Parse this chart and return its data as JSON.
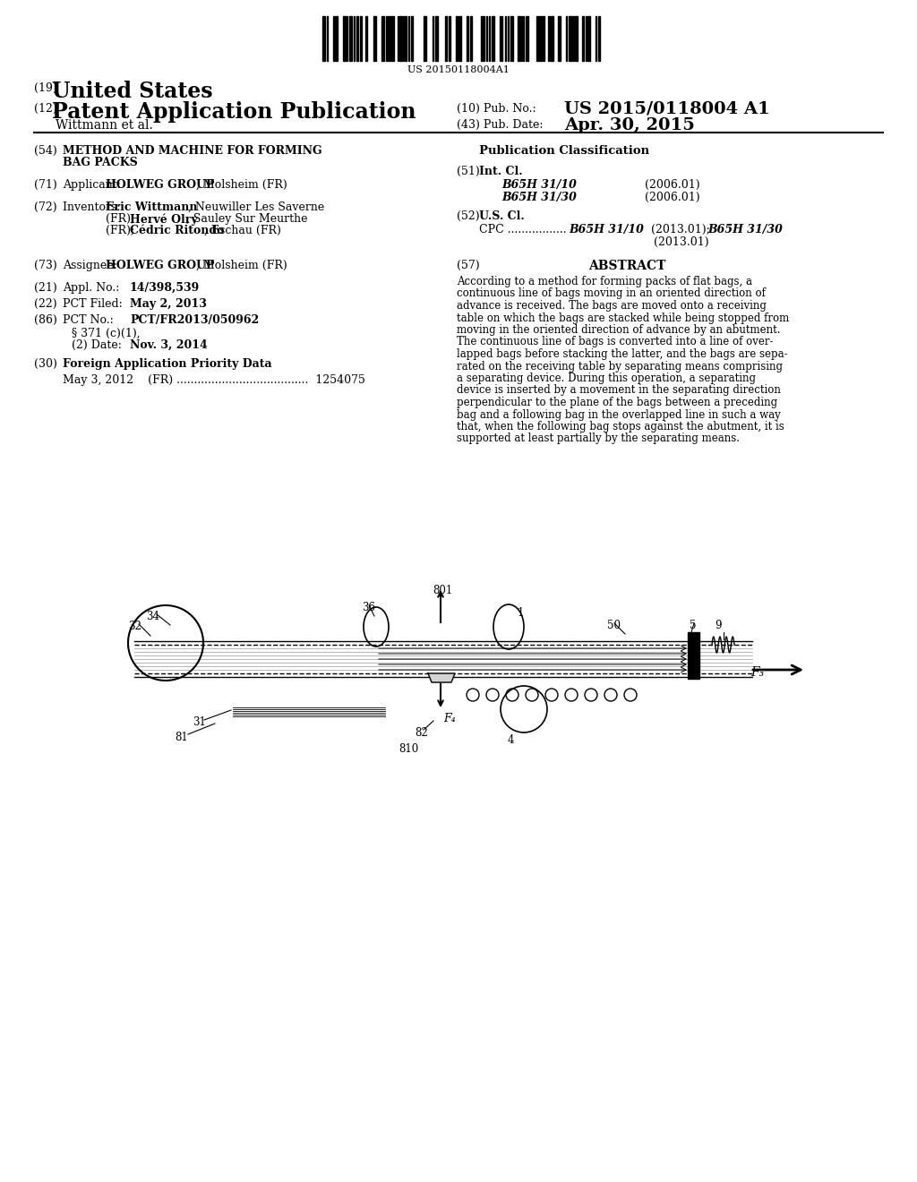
{
  "background_color": "#ffffff",
  "barcode_text": "US 20150118004A1",
  "patent_number": "US 2015/0118004 A1",
  "pub_date": "Apr. 30, 2015",
  "title_number": "(19)",
  "title_country": "United States",
  "pub_type_number": "(12)",
  "pub_type": "Patent Application Publication",
  "pub_no_label": "(10) Pub. No.:",
  "pub_date_label": "(43) Pub. Date:",
  "inventor_line": "Wittmann et al.",
  "abstract_lines": [
    "According to a method for forming packs of flat bags, a",
    "continuous line of bags moving in an oriented direction of",
    "advance is received. The bags are moved onto a receiving",
    "table on which the bags are stacked while being stopped from",
    "moving in the oriented direction of advance by an abutment.",
    "The continuous line of bags is converted into a line of over-",
    "lapped bags before stacking the latter, and the bags are sepa-",
    "rated on the receiving table by separating means comprising",
    "a separating device. During this operation, a separating",
    "device is inserted by a movement in the separating direction",
    "perpendicular to the plane of the bags between a preceding",
    "bag and a following bag in the overlapped line in such a way",
    "that, when the following bag stops against the abutment, it is",
    "supported at least partially by the separating means."
  ]
}
